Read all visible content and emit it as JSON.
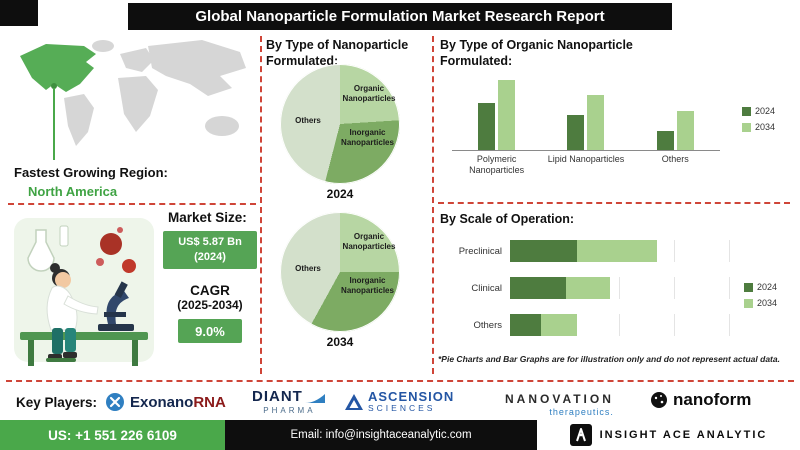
{
  "header": {
    "title": "Global Nanoparticle Formulation Market Research Report"
  },
  "colors": {
    "accent_green": "#4aa84a",
    "box_green": "#55a455",
    "bar_2024": "#4e7c3f",
    "bar_2034": "#a9d18e",
    "divider_red": "#cf4538",
    "header_bg": "#0e0e0e",
    "region_highlight": "#56ad56"
  },
  "map": {
    "region_label": "Fastest Growing Region:",
    "region_value": "North America"
  },
  "market": {
    "size_label": "Market Size:",
    "size_value": "US$ 5.87 Bn",
    "size_year": "(2024)",
    "cagr_label": "CAGR",
    "cagr_period": "(2025-2034)",
    "cagr_value": "9.0%"
  },
  "sections": {
    "pies_heading": "By Type of Nanoparticle Formulated:",
    "organic_heading": "By Type of Organic Nanoparticle Formulated:",
    "scale_heading": "By Scale of Operation:",
    "footnote": "*Pie Charts and Bar Graphs are for illustration only and do not represent actual data."
  },
  "key_players": {
    "label": "Key Players:",
    "logos": [
      {
        "name": "ExonanoRNA",
        "part1": "Exonano",
        "part2": "RNA"
      },
      {
        "name": "Diant Pharma",
        "line1": "DIANT",
        "line2": "PHARMA"
      },
      {
        "name": "Ascension Sciences",
        "line1": "ASCENSION",
        "line2": "SCIENCES"
      },
      {
        "name": "Nanovation Therapeutics",
        "line1": "NANOVATION",
        "line2": "therapeutics."
      },
      {
        "name": "Nanoform",
        "text": "nanoform"
      }
    ]
  },
  "footer": {
    "phone": "US: +1 551 226 6109",
    "email": "Email: info@insightaceanalytic.com",
    "brand": "INSIGHT ACE ANALYTIC"
  },
  "chart_data": [
    {
      "type": "pie",
      "year": "2024",
      "title": "By Type of Nanoparticle Formulated (2024)",
      "labels": [
        "Organic Nanoparticles",
        "Inorganic Nanoparticles",
        "Others"
      ],
      "values": [
        24,
        30,
        46
      ],
      "colors": [
        "#b7d6a3",
        "#7dab63",
        "#d3e0cb"
      ],
      "note": "illustrative only"
    },
    {
      "type": "pie",
      "year": "2034",
      "title": "By Type of Nanoparticle Formulated (2034)",
      "labels": [
        "Organic Nanoparticles",
        "Inorganic Nanoparticles",
        "Others"
      ],
      "values": [
        25,
        33,
        42
      ],
      "colors": [
        "#b7d6a3",
        "#7dab63",
        "#d3e0cb"
      ],
      "note": "illustrative only"
    },
    {
      "type": "bar",
      "title": "By Type of Organic Nanoparticle Formulated",
      "categories": [
        "Polymeric Nanoparticles",
        "Lipid Nanoparticles",
        "Others"
      ],
      "series": [
        {
          "name": "2024",
          "values": [
            60,
            45,
            25
          ]
        },
        {
          "name": "2034",
          "values": [
            90,
            70,
            50
          ]
        }
      ],
      "ylim": [
        0,
        100
      ],
      "legend_position": "right",
      "note": "illustrative only"
    },
    {
      "type": "bar",
      "orientation": "horizontal",
      "stacked": true,
      "title": "By Scale of Operation",
      "categories": [
        "Preclinical",
        "Clinical",
        "Others"
      ],
      "series": [
        {
          "name": "2024",
          "values": [
            30,
            25,
            14
          ]
        },
        {
          "name": "2034",
          "values": [
            36,
            20,
            16
          ]
        }
      ],
      "xlim": [
        0,
        100
      ],
      "legend_position": "right",
      "note": "illustrative only"
    }
  ]
}
